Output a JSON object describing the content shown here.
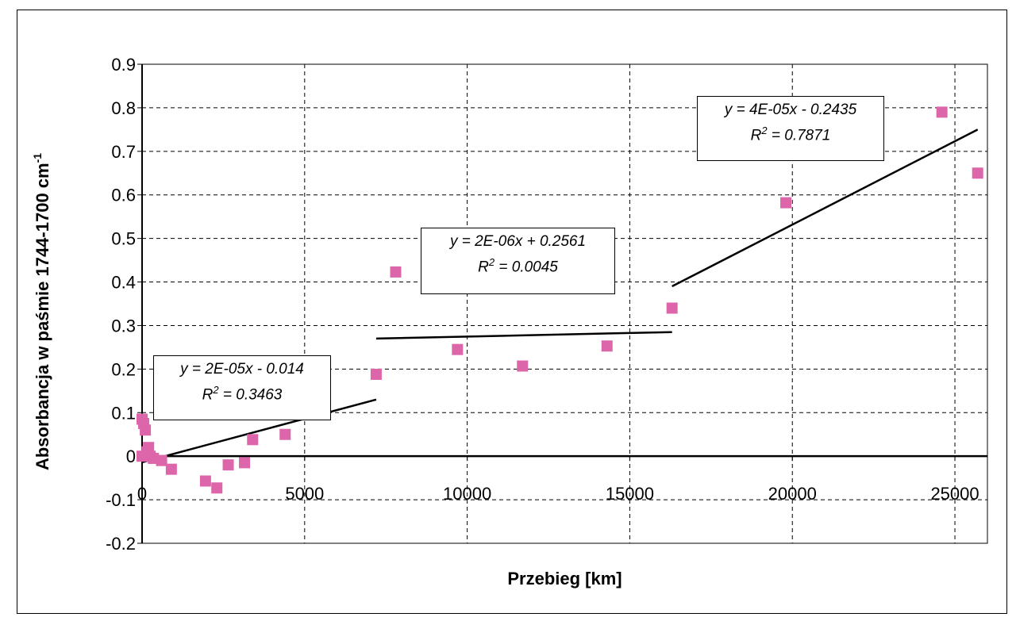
{
  "chart_data": {
    "type": "scatter",
    "xlabel": "Przebieg [km]",
    "ylabel": "Absorbancja w paśmie 1744-1700 cm",
    "ylabel_superscript": "-1",
    "xlim": [
      0,
      26000
    ],
    "ylim": [
      -0.2,
      0.9
    ],
    "x_ticks": [
      0,
      5000,
      10000,
      15000,
      20000,
      25000
    ],
    "y_ticks": [
      -0.2,
      -0.1,
      0,
      0.1,
      0.2,
      0.3,
      0.4,
      0.5,
      0.6,
      0.7,
      0.8,
      0.9
    ],
    "y_tick_labels": [
      "-0.2",
      "-0.1",
      "0",
      "0.1",
      "0.2",
      "0.3",
      "0.4",
      "0.5",
      "0.6",
      "0.7",
      "0.8",
      "0.9"
    ],
    "x_tick_labels": [
      "0",
      "5000",
      "10000",
      "15000",
      "20000",
      "25000"
    ],
    "grid": true,
    "marker_color": "#dd66aa",
    "points": [
      {
        "x": 0,
        "y": 0.0
      },
      {
        "x": 0,
        "y": 0.085
      },
      {
        "x": 50,
        "y": 0.075
      },
      {
        "x": 100,
        "y": 0.06
      },
      {
        "x": 150,
        "y": 0.01
      },
      {
        "x": 200,
        "y": 0.02
      },
      {
        "x": 250,
        "y": 0.0
      },
      {
        "x": 350,
        "y": -0.005
      },
      {
        "x": 600,
        "y": -0.01
      },
      {
        "x": 900,
        "y": -0.03
      },
      {
        "x": 1950,
        "y": -0.057
      },
      {
        "x": 2300,
        "y": -0.073
      },
      {
        "x": 2650,
        "y": -0.02
      },
      {
        "x": 3150,
        "y": -0.015
      },
      {
        "x": 3400,
        "y": 0.038
      },
      {
        "x": 3700,
        "y": 0.1
      },
      {
        "x": 4400,
        "y": 0.05
      },
      {
        "x": 5300,
        "y": 0.185
      },
      {
        "x": 7200,
        "y": 0.188
      },
      {
        "x": 7800,
        "y": 0.423
      },
      {
        "x": 9700,
        "y": 0.245
      },
      {
        "x": 11700,
        "y": 0.207
      },
      {
        "x": 14300,
        "y": 0.253
      },
      {
        "x": 16300,
        "y": 0.34
      },
      {
        "x": 19800,
        "y": 0.582
      },
      {
        "x": 24600,
        "y": 0.79
      },
      {
        "x": 25700,
        "y": 0.65
      }
    ],
    "trendlines": [
      {
        "x1": 0,
        "y1": -0.014,
        "x2": 7200,
        "y2": 0.13,
        "equation": "y = 2E-05x - 0.014",
        "r2_label": "R",
        "r2_value": " = 0.3463"
      },
      {
        "x1": 7200,
        "y1": 0.27,
        "x2": 16300,
        "y2": 0.285,
        "equation": "y = 2E-06x + 0.2561",
        "r2_label": "R",
        "r2_value": " = 0.0045"
      },
      {
        "x1": 16300,
        "y1": 0.39,
        "x2": 25700,
        "y2": 0.75,
        "equation": "y = 4E-05x - 0.2435",
        "r2_label": "R",
        "r2_value": " = 0.7871"
      }
    ]
  }
}
